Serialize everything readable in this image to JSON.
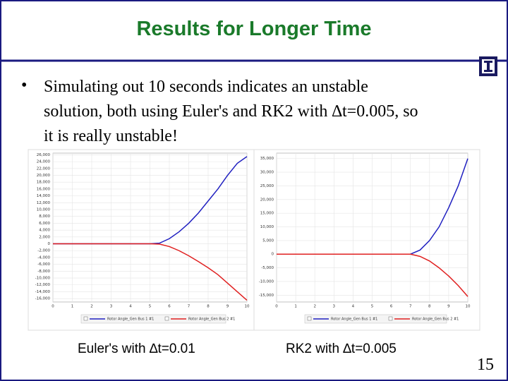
{
  "slide": {
    "title": "Results for Longer Time",
    "bullet": [
      "Simulating out 10 seconds indicates an unstable",
      "solution, both using Euler's and RK2 with ∆t=0.005, so",
      "it is really unstable!"
    ],
    "captions": [
      "Euler's with ∆t=0.01",
      "RK2 with ∆t=0.005"
    ],
    "page_number": "15"
  },
  "chart_data": [
    {
      "type": "line",
      "x": [
        0,
        1,
        2,
        3,
        4,
        5,
        5.5,
        6,
        6.5,
        7,
        7.5,
        8,
        8.5,
        9,
        9.5,
        10
      ],
      "series": [
        {
          "name": "Rotor Angle_Gen Bus 1 #1",
          "color": "#2020c0",
          "values": [
            0,
            0,
            0,
            0,
            0,
            0,
            200,
            1500,
            3500,
            6000,
            9000,
            12500,
            16000,
            20000,
            23500,
            25500
          ]
        },
        {
          "name": "Rotor Angle_Gen Bus 2 #1",
          "color": "#e02020",
          "values": [
            0,
            0,
            0,
            0,
            0,
            0,
            -100,
            -800,
            -2000,
            -3500,
            -5200,
            -7000,
            -9000,
            -11500,
            -14000,
            -16500
          ]
        }
      ],
      "xlim": [
        0,
        10
      ],
      "xticks": [
        0,
        1,
        2,
        3,
        4,
        5,
        6,
        7,
        8,
        9,
        10
      ],
      "ylim": [
        -17000,
        26500
      ],
      "yticks": [
        {
          "value": -16000,
          "label": "-16,000"
        },
        {
          "value": -14000,
          "label": "-14,000"
        },
        {
          "value": -12000,
          "label": "-12,000"
        },
        {
          "value": -10000,
          "label": "-10,000"
        },
        {
          "value": -8000,
          "label": "-8,000"
        },
        {
          "value": -6000,
          "label": "-6,000"
        },
        {
          "value": -4000,
          "label": "-4,000"
        },
        {
          "value": -2000,
          "label": "-2,000"
        },
        0,
        {
          "value": 2000,
          "label": "2,000"
        },
        {
          "value": 4000,
          "label": "4,000"
        },
        {
          "value": 6000,
          "label": "6,000"
        },
        {
          "value": 8000,
          "label": "8,000"
        },
        {
          "value": 10000,
          "label": "10,000"
        },
        {
          "value": 12000,
          "label": "12,000"
        },
        {
          "value": 14000,
          "label": "14,000"
        },
        {
          "value": 16000,
          "label": "16,000"
        },
        {
          "value": 18000,
          "label": "18,000"
        },
        {
          "value": 20000,
          "label": "20,000"
        },
        {
          "value": 22000,
          "label": "22,000"
        },
        {
          "value": 24000,
          "label": "24,000"
        },
        {
          "value": 26000,
          "label": "26,000"
        }
      ],
      "grid": true
    },
    {
      "type": "line",
      "x": [
        0,
        1,
        2,
        3,
        4,
        5,
        5.5,
        6,
        6.5,
        7,
        7.5,
        8,
        8.5,
        9,
        9.5,
        10
      ],
      "series": [
        {
          "name": "Rotor Angle_Gen Bus 1 #1",
          "color": "#2020c0",
          "values": [
            0,
            0,
            0,
            0,
            0,
            0,
            0,
            0,
            0,
            0,
            1500,
            5000,
            10000,
            17000,
            25000,
            35000
          ]
        },
        {
          "name": "Rotor Angle_Gen Bus 2 #1",
          "color": "#e02020",
          "values": [
            0,
            0,
            0,
            0,
            0,
            0,
            0,
            0,
            0,
            0,
            -800,
            -2500,
            -5000,
            -8000,
            -11500,
            -15500
          ]
        }
      ],
      "xlim": [
        0,
        10
      ],
      "xticks": [
        0,
        1,
        2,
        3,
        4,
        5,
        6,
        7,
        8,
        9,
        10
      ],
      "ylim": [
        -17500,
        37000
      ],
      "yticks": [
        {
          "value": -15000,
          "label": "-15,000"
        },
        {
          "value": -10000,
          "label": "-10,000"
        },
        {
          "value": -5000,
          "label": "-5,000"
        },
        0,
        {
          "value": 5000,
          "label": "5,000"
        },
        {
          "value": 10000,
          "label": "10,000"
        },
        {
          "value": 15000,
          "label": "15,000"
        },
        {
          "value": 20000,
          "label": "20,000"
        },
        {
          "value": 25000,
          "label": "25,000"
        },
        {
          "value": 30000,
          "label": "30,000"
        },
        {
          "value": 35000,
          "label": "35,000"
        }
      ],
      "grid": true
    }
  ]
}
